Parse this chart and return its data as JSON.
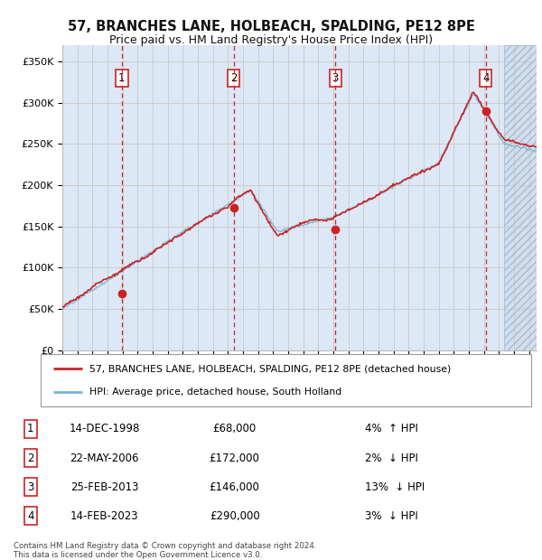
{
  "title1": "57, BRANCHES LANE, HOLBEACH, SPALDING, PE12 8PE",
  "title2": "Price paid vs. HM Land Registry's House Price Index (HPI)",
  "ylabel_ticks": [
    "£0",
    "£50K",
    "£100K",
    "£150K",
    "£200K",
    "£250K",
    "£300K",
    "£350K"
  ],
  "ytick_values": [
    0,
    50000,
    100000,
    150000,
    200000,
    250000,
    300000,
    350000
  ],
  "ylim": [
    0,
    370000
  ],
  "xlim_start": 1995.0,
  "xlim_end": 2026.5,
  "hatch_start": 2024.33,
  "transactions": [
    {
      "num": 1,
      "date": "14-DEC-1998",
      "price": 68000,
      "year": 1998.95,
      "pct": "4%",
      "dir": "↑"
    },
    {
      "num": 2,
      "date": "22-MAY-2006",
      "price": 172000,
      "year": 2006.38,
      "pct": "2%",
      "dir": "↓"
    },
    {
      "num": 3,
      "date": "25-FEB-2013",
      "price": 146000,
      "year": 2013.13,
      "pct": "13%",
      "dir": "↓"
    },
    {
      "num": 4,
      "date": "14-FEB-2023",
      "price": 290000,
      "year": 2023.12,
      "pct": "3%",
      "dir": "↓"
    }
  ],
  "legend_label_red": "57, BRANCHES LANE, HOLBEACH, SPALDING, PE12 8PE (detached house)",
  "legend_label_blue": "HPI: Average price, detached house, South Holland",
  "footnote1": "Contains HM Land Registry data © Crown copyright and database right 2024.",
  "footnote2": "This data is licensed under the Open Government Licence v3.0.",
  "hpi_color": "#7ab3d4",
  "price_color": "#cc2222",
  "vline_color": "#cc2222",
  "grid_color": "#cccccc",
  "background_color": "#ffffff",
  "plot_bg": "#dce8f5"
}
